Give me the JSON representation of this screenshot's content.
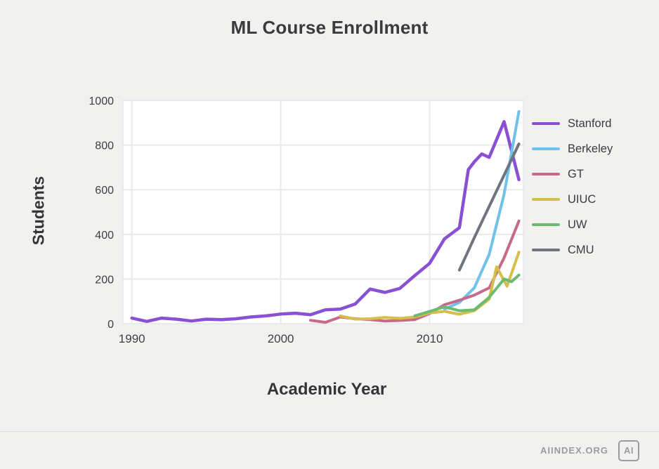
{
  "footer": {
    "brand": "AIINDEX.ORG",
    "logo_text": "AI"
  },
  "chart_data": {
    "type": "line",
    "title": "ML Course Enrollment",
    "xlabel": "Academic Year",
    "ylabel": "Students",
    "xlim": [
      1989.4,
      2016.3
    ],
    "ylim": [
      0,
      1000
    ],
    "x_ticks": [
      1990,
      2000,
      2010
    ],
    "y_ticks": [
      0,
      200,
      400,
      600,
      800,
      1000
    ],
    "grid": true,
    "legend_position": "right",
    "background": "#f1f1f0",
    "plot_background": "#ffffff",
    "grid_color": "#e9e9e9",
    "border_color": "#dedede",
    "series": [
      {
        "name": "Stanford",
        "color": "#8950d4",
        "width": 4.5,
        "points": [
          [
            1990,
            25
          ],
          [
            1991,
            10
          ],
          [
            1992,
            25
          ],
          [
            1993,
            20
          ],
          [
            1994,
            12
          ],
          [
            1995,
            20
          ],
          [
            1996,
            18
          ],
          [
            1997,
            22
          ],
          [
            1998,
            30
          ],
          [
            1999,
            35
          ],
          [
            2000,
            43
          ],
          [
            2001,
            47
          ],
          [
            2002,
            40
          ],
          [
            2003,
            62
          ],
          [
            2004,
            65
          ],
          [
            2005,
            88
          ],
          [
            2006,
            155
          ],
          [
            2007,
            140
          ],
          [
            2008,
            158
          ],
          [
            2009,
            215
          ],
          [
            2010,
            270
          ],
          [
            2011,
            380
          ],
          [
            2012,
            430
          ],
          [
            2012.6,
            690
          ],
          [
            2013,
            725
          ],
          [
            2013.5,
            760
          ],
          [
            2014,
            745
          ],
          [
            2015,
            905
          ],
          [
            2016,
            645
          ]
        ]
      },
      {
        "name": "Berkeley",
        "color": "#6fc2ea",
        "width": 4,
        "points": [
          [
            2011,
            65
          ],
          [
            2012,
            95
          ],
          [
            2013,
            160
          ],
          [
            2014,
            310
          ],
          [
            2015,
            580
          ],
          [
            2016,
            950
          ]
        ]
      },
      {
        "name": "GT",
        "color": "#c76a8a",
        "width": 4,
        "points": [
          [
            2002,
            15
          ],
          [
            2003,
            6
          ],
          [
            2004,
            30
          ],
          [
            2005,
            22
          ],
          [
            2006,
            18
          ],
          [
            2007,
            12
          ],
          [
            2008,
            14
          ],
          [
            2009,
            18
          ],
          [
            2010,
            45
          ],
          [
            2011,
            85
          ],
          [
            2012,
            105
          ],
          [
            2013,
            128
          ],
          [
            2014,
            160
          ],
          [
            2015,
            295
          ],
          [
            2016,
            460
          ]
        ]
      },
      {
        "name": "UIUC",
        "color": "#d3bf4a",
        "width": 4,
        "points": [
          [
            2004,
            35
          ],
          [
            2005,
            20
          ],
          [
            2006,
            22
          ],
          [
            2007,
            28
          ],
          [
            2008,
            24
          ],
          [
            2009,
            30
          ],
          [
            2010,
            48
          ],
          [
            2011,
            55
          ],
          [
            2012,
            42
          ],
          [
            2013,
            58
          ],
          [
            2014,
            110
          ],
          [
            2014.5,
            255
          ],
          [
            2015.2,
            168
          ],
          [
            2016,
            320
          ]
        ]
      },
      {
        "name": "UW",
        "color": "#6cbb70",
        "width": 4,
        "points": [
          [
            2009,
            35
          ],
          [
            2010,
            55
          ],
          [
            2011,
            75
          ],
          [
            2012,
            58
          ],
          [
            2013,
            62
          ],
          [
            2014,
            118
          ],
          [
            2015,
            200
          ],
          [
            2015.5,
            188
          ],
          [
            2016,
            218
          ]
        ]
      },
      {
        "name": "CMU",
        "color": "#6e7480",
        "width": 4,
        "points": [
          [
            2012,
            240
          ],
          [
            2013,
            385
          ],
          [
            2014,
            525
          ],
          [
            2015,
            665
          ],
          [
            2016,
            805
          ]
        ]
      }
    ]
  }
}
